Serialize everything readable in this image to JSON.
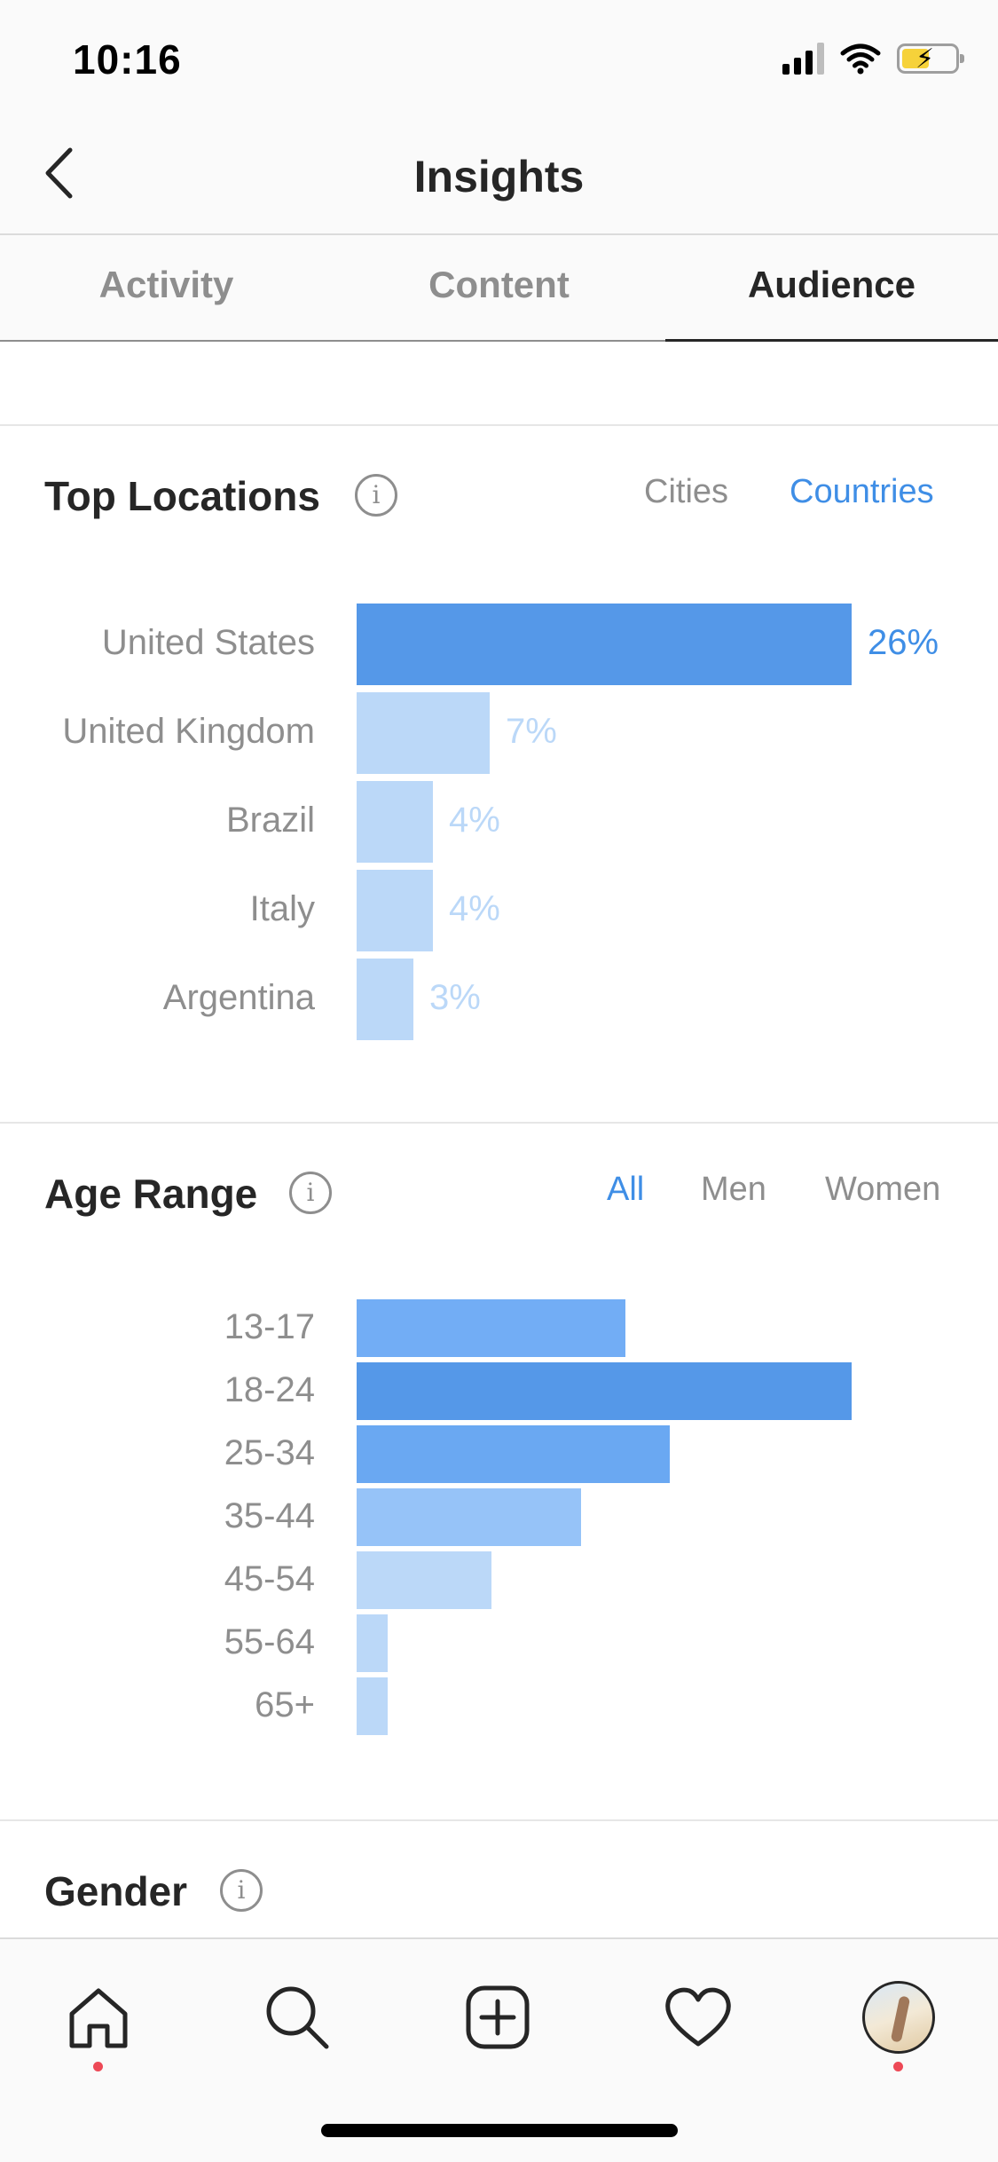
{
  "status_bar": {
    "time": "10:16"
  },
  "header": {
    "title": "Insights"
  },
  "tabs": [
    {
      "label": "Activity",
      "active": false
    },
    {
      "label": "Content",
      "active": false
    },
    {
      "label": "Audience",
      "active": true
    }
  ],
  "top_locations": {
    "title": "Top Locations",
    "filters": [
      {
        "label": "Cities",
        "selected": false
      },
      {
        "label": "Countries",
        "selected": true
      }
    ],
    "chart_data": {
      "type": "bar",
      "orientation": "horizontal",
      "categories": [
        "United States",
        "United Kingdom",
        "Brazil",
        "Italy",
        "Argentina"
      ],
      "values": [
        26,
        7,
        4,
        4,
        3
      ],
      "value_labels": [
        "26%",
        "7%",
        "4%",
        "4%",
        "3%"
      ],
      "colors": [
        "#5598e8",
        "#bbd8f8",
        "#bbd8f8",
        "#bbd8f8",
        "#bbd8f8"
      ],
      "label_colors": [
        "#3f8ee6",
        "#bbd8f8",
        "#bbd8f8",
        "#bbd8f8",
        "#bbd8f8"
      ]
    }
  },
  "age_range": {
    "title": "Age Range",
    "filters": [
      {
        "label": "All",
        "selected": true
      },
      {
        "label": "Men",
        "selected": false
      },
      {
        "label": "Women",
        "selected": false
      }
    ],
    "chart_data": {
      "type": "bar",
      "orientation": "horizontal",
      "categories": [
        "13-17",
        "18-24",
        "25-34",
        "35-44",
        "45-54",
        "55-64",
        "65+"
      ],
      "values": [
        23.5,
        43.3,
        27.4,
        19.6,
        11.8,
        2.7,
        2.7
      ],
      "colors": [
        "#72adf5",
        "#5598e8",
        "#6aa8f2",
        "#96c3f8",
        "#bbd8f8",
        "#bbd8f8",
        "#bbd8f8"
      ]
    }
  },
  "gender": {
    "title": "Gender"
  },
  "tab_bar": {
    "items": [
      {
        "icon": "home-icon",
        "has_dot": true
      },
      {
        "icon": "search-icon",
        "has_dot": false
      },
      {
        "icon": "plus-square-icon",
        "has_dot": false
      },
      {
        "icon": "heart-icon",
        "has_dot": false
      },
      {
        "icon": "profile-avatar",
        "has_dot": true
      }
    ],
    "dot_color": "#ed4956"
  },
  "colors": {
    "accent": "#3f8ee6",
    "text": "#262626",
    "muted": "#8e8e8e"
  }
}
